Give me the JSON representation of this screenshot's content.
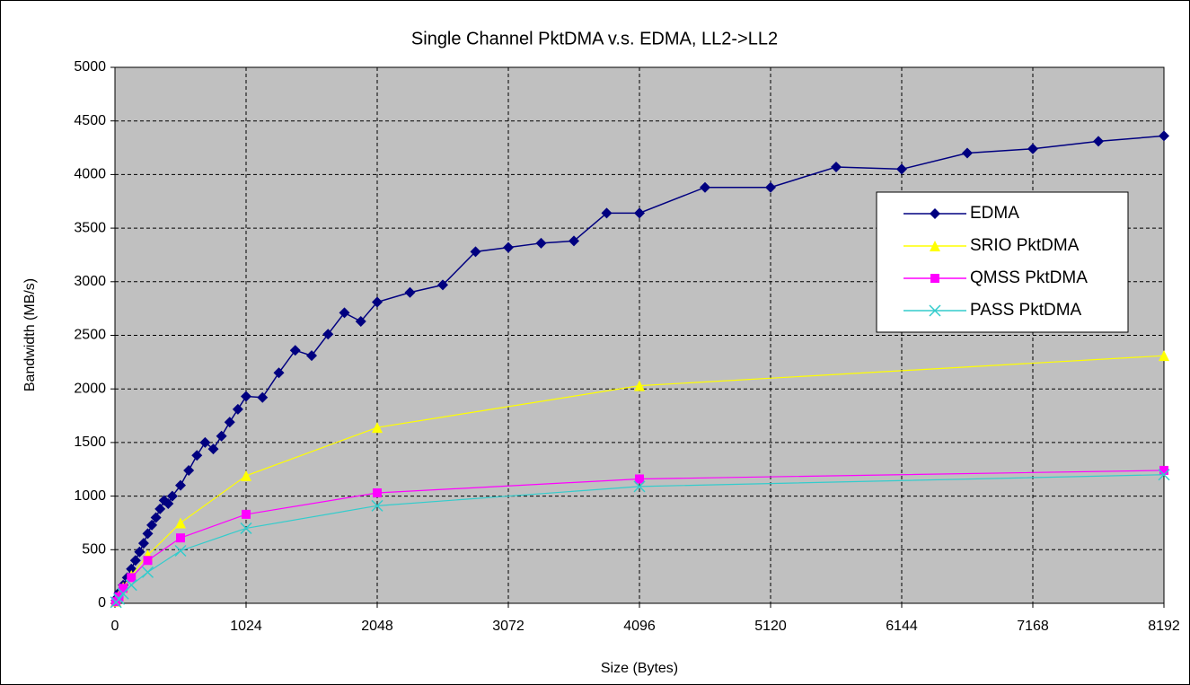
{
  "chart_data": {
    "type": "line",
    "title": "Single Channel PktDMA v.s. EDMA, LL2->LL2",
    "x_label": "Size (Bytes)",
    "y_label": "Bandwidth (MB/s)",
    "xlim": [
      0,
      8192
    ],
    "xticks": [
      0,
      1024,
      2048,
      3072,
      4096,
      5120,
      6144,
      7168,
      8192
    ],
    "ylim": [
      0,
      5000
    ],
    "yticks": [
      0,
      500,
      1000,
      1500,
      2000,
      2500,
      3000,
      3500,
      4000,
      4500,
      5000
    ],
    "grid": true,
    "legend": "right",
    "series": [
      {
        "name": "EDMA",
        "color": "#000080",
        "marker": "diamond",
        "x": [
          8,
          16,
          32,
          64,
          96,
          128,
          160,
          192,
          224,
          256,
          288,
          320,
          352,
          384,
          416,
          448,
          512,
          576,
          640,
          704,
          768,
          832,
          896,
          960,
          1024,
          1152,
          1280,
          1408,
          1536,
          1664,
          1792,
          1920,
          2048,
          2304,
          2560,
          2816,
          3072,
          3328,
          3584,
          3840,
          4096,
          4608,
          5120,
          5632,
          6144,
          6656,
          7168,
          7680,
          8192
        ],
        "values": [
          25,
          50,
          100,
          170,
          240,
          320,
          400,
          480,
          560,
          650,
          730,
          800,
          880,
          960,
          930,
          1000,
          1100,
          1240,
          1380,
          1500,
          1440,
          1560,
          1690,
          1810,
          1930,
          1920,
          2150,
          2360,
          2310,
          2510,
          2710,
          2630,
          2810,
          2900,
          2970,
          3280,
          3320,
          3360,
          3380,
          3640,
          3640,
          3880,
          3880,
          4070,
          4050,
          4200,
          4240,
          4310,
          4360
        ]
      },
      {
        "name": "SRIO PktDMA",
        "color": "#ffff00",
        "marker": "triangle",
        "x": [
          8,
          32,
          64,
          128,
          256,
          512,
          1024,
          2048,
          4096,
          8192
        ],
        "values": [
          20,
          80,
          150,
          260,
          450,
          750,
          1190,
          1640,
          2030,
          2310
        ]
      },
      {
        "name": "QMSS PktDMA",
        "color": "#ff00ff",
        "marker": "square",
        "x": [
          8,
          32,
          64,
          128,
          256,
          512,
          1024,
          2048,
          4096,
          8192
        ],
        "values": [
          15,
          60,
          140,
          240,
          400,
          610,
          830,
          1030,
          1160,
          1240
        ]
      },
      {
        "name": "PASS PktDMA",
        "color": "#33cccc",
        "marker": "x",
        "x": [
          8,
          32,
          64,
          128,
          256,
          512,
          1024,
          2048,
          4096,
          8192
        ],
        "values": [
          10,
          40,
          90,
          170,
          290,
          490,
          700,
          910,
          1090,
          1200
        ]
      }
    ]
  }
}
